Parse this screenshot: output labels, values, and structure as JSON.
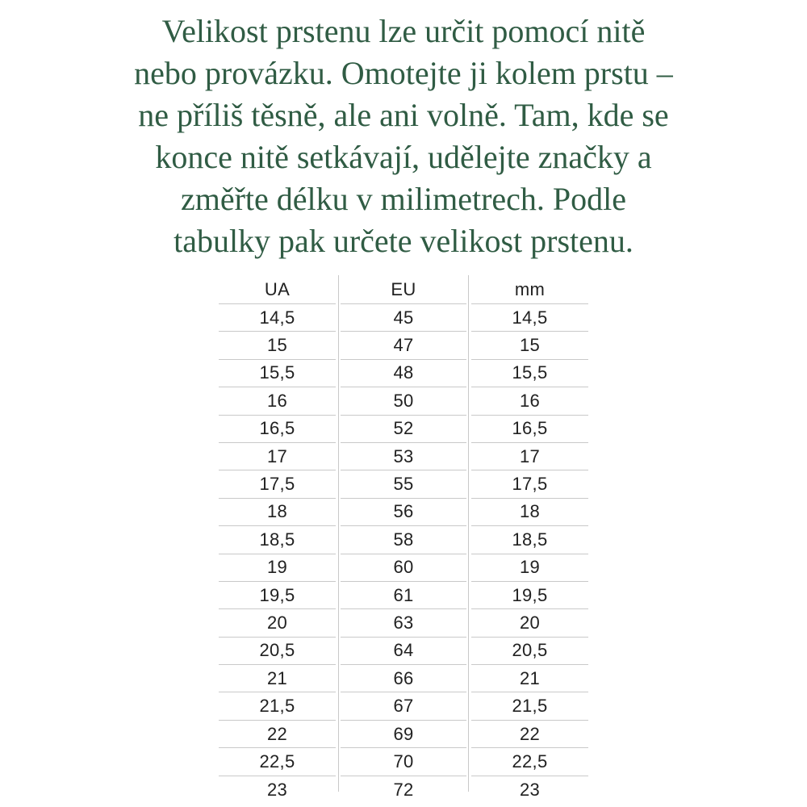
{
  "colors": {
    "heading_text": "#305c44",
    "table_text": "#212121",
    "grid_line": "#c9c9c9",
    "background": "#ffffff"
  },
  "intro": {
    "lines": [
      "Velikost prstenu lze určit pomocí nitě",
      "nebo provázku. Omotejte ji kolem prstu –",
      "ne příliš těsně, ale ani volně. Tam, kde se",
      "konce nitě setkávají, udělejte značky a",
      "změřte délku v milimetrech. Podle",
      "tabulky pak určete velikost prstenu."
    ]
  },
  "table": {
    "headers": [
      "UA",
      "EU",
      "mm"
    ],
    "rows": [
      [
        "14,5",
        "45",
        "14,5"
      ],
      [
        "15",
        "47",
        "15"
      ],
      [
        "15,5",
        "48",
        "15,5"
      ],
      [
        "16",
        "50",
        "16"
      ],
      [
        "16,5",
        "52",
        "16,5"
      ],
      [
        "17",
        "53",
        "17"
      ],
      [
        "17,5",
        "55",
        "17,5"
      ],
      [
        "18",
        "56",
        "18"
      ],
      [
        "18,5",
        "58",
        "18,5"
      ],
      [
        "19",
        "60",
        "19"
      ],
      [
        "19,5",
        "61",
        "19,5"
      ],
      [
        "20",
        "63",
        "20"
      ],
      [
        "20,5",
        "64",
        "20,5"
      ],
      [
        "21",
        "66",
        "21"
      ],
      [
        "21,5",
        "67",
        "21,5"
      ],
      [
        "22",
        "69",
        "22"
      ],
      [
        "22,5",
        "70",
        "22,5"
      ],
      [
        "23",
        "72",
        "23"
      ]
    ]
  }
}
